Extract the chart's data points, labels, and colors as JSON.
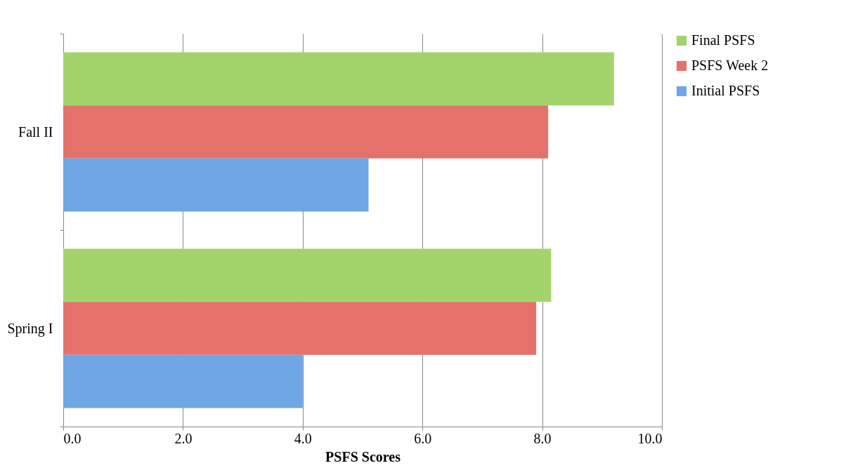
{
  "chart_data": {
    "type": "bar",
    "orientation": "horizontal",
    "xlabel": "PSFS Scores",
    "categories": [
      "Fall II",
      "Spring I"
    ],
    "series": [
      {
        "name": "Final PSFS",
        "color": "#a3d46c",
        "values": [
          9.2,
          8.15
        ]
      },
      {
        "name": "PSFS Week 2",
        "color": "#e4716b",
        "values": [
          8.1,
          7.9
        ]
      },
      {
        "name": "Initial PSFS",
        "color": "#6ea6e6",
        "values": [
          5.1,
          4.0
        ]
      }
    ],
    "xlim": [
      0,
      10
    ],
    "xticks": [
      {
        "value": 0,
        "label": "0.0"
      },
      {
        "value": 2,
        "label": "2.0"
      },
      {
        "value": 4,
        "label": "4.0"
      },
      {
        "value": 6,
        "label": "6.0"
      },
      {
        "value": 8,
        "label": "8.0"
      },
      {
        "value": 10,
        "label": "10.0"
      }
    ],
    "grid": "x",
    "legend": "right"
  }
}
